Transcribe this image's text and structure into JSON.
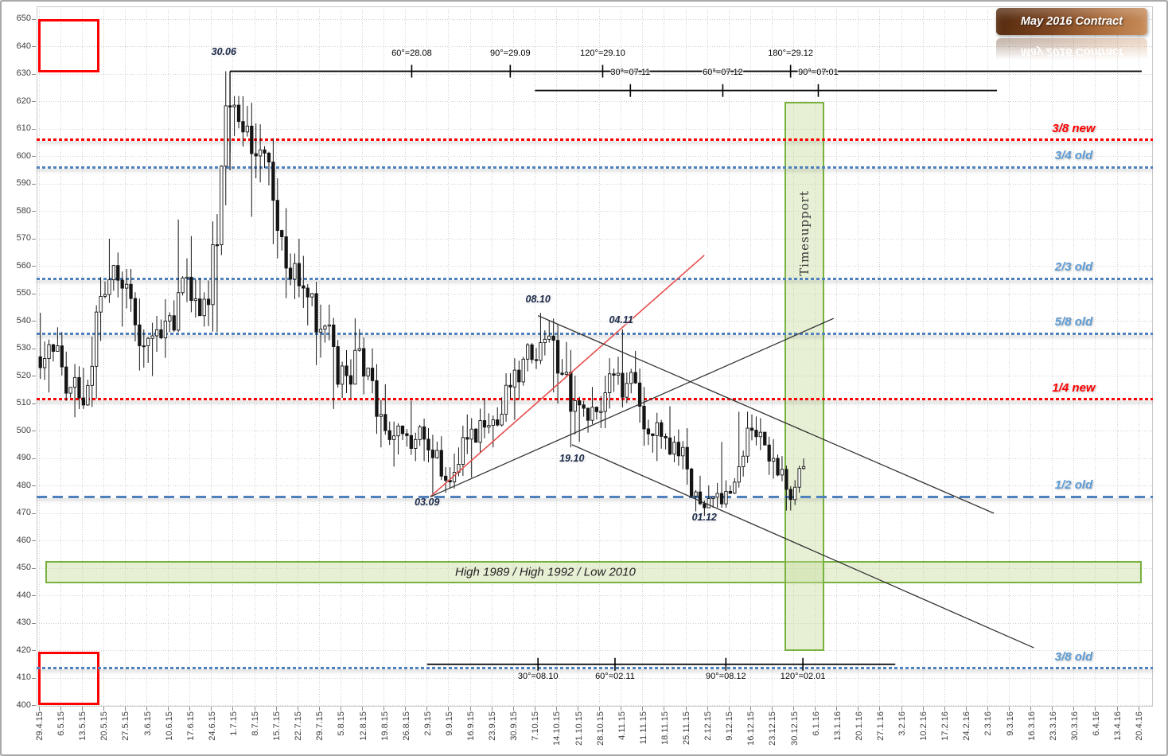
{
  "title_badge": {
    "label": "May 2016 Contract",
    "color_from": "#53290e",
    "color_to": "#c98e5c"
  },
  "chart_data": {
    "type": "candlestick",
    "title": "May 2016 Contract",
    "grid": true,
    "axes": {
      "y": {
        "min": 400,
        "max": 650,
        "step": 10,
        "labels": [
          "650",
          "640",
          "630",
          "620",
          "610",
          "600",
          "590",
          "580",
          "570",
          "560",
          "550",
          "540",
          "530",
          "520",
          "510",
          "500",
          "490",
          "480",
          "470",
          "460",
          "450",
          "440",
          "430",
          "420",
          "410",
          "400"
        ]
      },
      "x": {
        "labels": [
          "29.4.15",
          "6.5.15",
          "13.5.15",
          "20.5.15",
          "27.5.15",
          "3.6.15",
          "10.6.15",
          "17.6.15",
          "24.6.15",
          "1.7.15",
          "8.7.15",
          "15.7.15",
          "22.7.15",
          "29.7.15",
          "5.8.15",
          "12.8.15",
          "19.8.15",
          "26.8.15",
          "2.9.15",
          "9.9.15",
          "16.9.15",
          "23.9.15",
          "30.9.15",
          "7.10.15",
          "14.10.15",
          "21.10.15",
          "28.10.15",
          "4.11.15",
          "11.11.15",
          "18.11.15",
          "25.11.15",
          "2.12.15",
          "9.12.15",
          "16.12.15",
          "23.12.15",
          "30.12.15",
          "6.1.16",
          "13.1.16",
          "20.1.16",
          "27.1.16",
          "3.2.16",
          "10.2.16",
          "17.2.16",
          "24.2.16",
          "2.3.16",
          "9.3.16",
          "16.3.16",
          "23.3.16",
          "30.3.16",
          "6.4.16",
          "13.4.16",
          "20.4.16"
        ]
      }
    },
    "series_format": "weekStartDate, high, low, close, highDayIndex, lowDayIndex, optionalDayCount",
    "weekly": [
      [
        "29.4.15",
        543,
        514,
        531,
        0,
        2
      ],
      [
        "6.5.15",
        536,
        505,
        512,
        0,
        3
      ],
      [
        "13.5.15",
        556,
        508,
        549,
        4,
        0
      ],
      [
        "20.5.15",
        570,
        538,
        552,
        1,
        4
      ],
      [
        "27.5.15",
        559,
        522,
        531,
        0,
        3
      ],
      [
        "3.6.15",
        548,
        520,
        540,
        4,
        1
      ],
      [
        "10.6.15",
        577,
        536,
        556,
        2,
        0
      ],
      [
        "17.6.15",
        571,
        538,
        546,
        0,
        3
      ],
      [
        "24.6.15",
        631,
        536,
        618,
        4,
        1
      ],
      [
        "1.7.15",
        622,
        578,
        601,
        0,
        4
      ],
      [
        "8.7.15",
        612,
        568,
        584,
        0,
        4
      ],
      [
        "15.7.15",
        592,
        548,
        561,
        0,
        4
      ],
      [
        "22.7.15",
        570,
        524,
        536,
        0,
        4
      ],
      [
        "29.7.15",
        546,
        508,
        517,
        0,
        3
      ],
      [
        "5.8.15",
        541,
        512,
        530,
        3,
        0
      ],
      [
        "12.8.15",
        534,
        494,
        506,
        0,
        4
      ],
      [
        "19.8.15",
        517,
        487,
        499,
        0,
        2
      ],
      [
        "26.8.15",
        511,
        489,
        497,
        1,
        4
      ],
      [
        "2.9.15",
        501,
        476,
        482,
        0,
        1
      ],
      [
        "9.9.15",
        506,
        479,
        497,
        4,
        0
      ],
      [
        "16.9.15",
        512,
        483,
        502,
        3,
        0
      ],
      [
        "23.9.15",
        521,
        494,
        516,
        4,
        0
      ],
      [
        "30.9.15",
        532,
        504,
        526,
        3,
        0
      ],
      [
        "7.10.15",
        543,
        514,
        533,
        1,
        4
      ],
      [
        "14.10.15",
        539,
        494,
        511,
        0,
        3
      ],
      [
        "21.10.15",
        516,
        496,
        507,
        3,
        0
      ],
      [
        "28.10.15",
        527,
        501,
        521,
        4,
        0
      ],
      [
        "4.11.15",
        537,
        503,
        509,
        0,
        4
      ],
      [
        "11.11.15",
        516,
        489,
        498,
        0,
        3
      ],
      [
        "18.11.15",
        509,
        486,
        494,
        1,
        4
      ],
      [
        "25.11.15",
        501,
        469,
        472,
        0,
        4
      ],
      [
        "2.12.15",
        496,
        472,
        478,
        3,
        0
      ],
      [
        "9.12.15",
        507,
        477,
        501,
        2,
        0
      ],
      [
        "16.12.15",
        506,
        484,
        489,
        0,
        4
      ],
      [
        "23.12.15",
        497,
        471,
        475,
        0,
        3
      ],
      [
        "30.12.15",
        490,
        473,
        487,
        2,
        0,
        3
      ]
    ],
    "levels": [
      {
        "label": "3/8 new",
        "price": 606,
        "color": "red",
        "style": "dotted"
      },
      {
        "label": "3/4 old",
        "price": 596,
        "color": "blue",
        "style": "dotted"
      },
      {
        "label": "2/3 old",
        "price": 555.5,
        "color": "blue",
        "style": "dotted"
      },
      {
        "label": "5/8 old",
        "price": 535.5,
        "color": "blue",
        "style": "dotted"
      },
      {
        "label": "1/4 new",
        "price": 511.5,
        "color": "red",
        "style": "dotted"
      },
      {
        "label": "1/2 old",
        "price": 476,
        "color": "blue",
        "style": "dashed"
      },
      {
        "label": "3/8 old",
        "price": 413.5,
        "color": "blue",
        "style": "dotted"
      }
    ],
    "gann_rows": [
      {
        "level": 631,
        "from": "30.6.15",
        "to": "21.4.16",
        "labels_above": true,
        "ticks": [
          {
            "label": "60°=28.08",
            "date": "28.8.15"
          },
          {
            "label": "90°=29.09",
            "date": "29.9.15"
          },
          {
            "label": "120°=29.10",
            "date": "29.10.15"
          },
          {
            "label": "180°=29.12",
            "date": "29.12.15"
          }
        ]
      },
      {
        "level": 624,
        "from": "7.10.15",
        "to": "5.3.16",
        "labels_above": true,
        "ticks": [
          {
            "label": "30°=07.11",
            "date": "7.11.15"
          },
          {
            "label": "60°=07.12",
            "date": "7.12.15"
          },
          {
            "label": "90°=07.01",
            "date": "7.1.16"
          }
        ]
      },
      {
        "level": 415,
        "from": "2.9.15",
        "to": "1.2.16",
        "labels_above": false,
        "ticks": [
          {
            "label": "30°=08.10",
            "date": "8.10.15"
          },
          {
            "label": "60°=02.11",
            "date": "2.11.15"
          },
          {
            "label": "90°=08.12",
            "date": "8.12.15"
          },
          {
            "label": "120°=02.01",
            "date": "2.1.16"
          }
        ]
      }
    ],
    "trend_lines": [
      {
        "name": "red-uptrend",
        "color": "#e64c4c",
        "width": 1.6,
        "p1": {
          "date": "3.9.15",
          "price": 476
        },
        "p2": {
          "date": "1.12.15",
          "price": 564
        }
      },
      {
        "name": "black-uptrend",
        "color": "#333333",
        "width": 1.3,
        "p1": {
          "date": "3.9.15",
          "price": 476
        },
        "p2": {
          "date": "12.1.16",
          "price": 541
        }
      },
      {
        "name": "black-downtrend-1",
        "color": "#333333",
        "width": 1.3,
        "p1": {
          "date": "8.10.15",
          "price": 542
        },
        "p2": {
          "date": "4.3.16",
          "price": 470
        }
      },
      {
        "name": "black-downtrend-2",
        "color": "#333333",
        "width": 1.3,
        "p1": {
          "date": "19.10.15",
          "price": 495
        },
        "p2": {
          "date": "17.3.16",
          "price": 421
        }
      }
    ],
    "annotations": [
      {
        "text": "30.06",
        "date": "28.6.15",
        "price": 638
      },
      {
        "text": "08.10",
        "date": "8.10.15",
        "price": 548
      },
      {
        "text": "04.11",
        "date": "4.11.15",
        "price": 540.5
      },
      {
        "text": "19.10",
        "date": "19.10.15",
        "price": 490
      },
      {
        "text": "03.09",
        "date": "2.9.15",
        "price": 474
      },
      {
        "text": "01.12",
        "date": "1.12.15",
        "price": 468.5
      }
    ],
    "bands": {
      "horizontal": {
        "label": "High 1989 / High 1992 / Low 2010",
        "date_from": "1.5.15",
        "date_to": "21.4.16",
        "price_from": 444.5,
        "price_to": 452.5
      },
      "vertical": {
        "label": "Timesupport",
        "date_from": "27.12.15",
        "date_to": "9.1.16",
        "price_from": 420,
        "price_to": 620,
        "label_price": 572
      }
    },
    "red_boxes": [
      {
        "date_from": "29.4.15",
        "date_to": "19.5.15",
        "price_from": 630.5,
        "price_to": 650
      },
      {
        "date_from": "29.4.15",
        "date_to": "19.5.15",
        "price_from": 400,
        "price_to": 419.5
      }
    ],
    "colors": {
      "candle": "#151515",
      "grid": "#cfcfcf",
      "gann_line": "#000000",
      "level_red": "#ff0000",
      "level_blue": "#4f81bd",
      "label_blue": "#5b9bd5",
      "band_border": "#77b13e",
      "red_box": "#ff0000",
      "red_trend": "#e64c4c"
    }
  }
}
